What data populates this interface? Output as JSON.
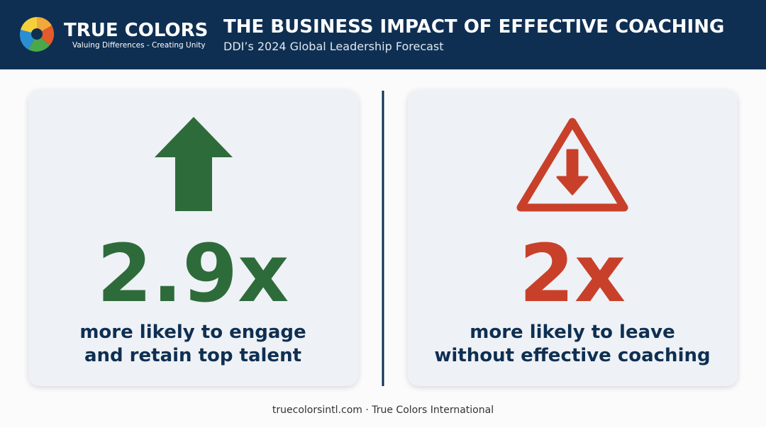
{
  "header": {
    "brand": "TRUE COLORS",
    "tagline": "Valuing Differences - Creating Unity",
    "title": "THE BUSINESS IMPACT OF EFFECTIVE COACHING",
    "subtitle": "DDI’s 2024 Global Leadership Forecast"
  },
  "cards": [
    {
      "value": "2.9x",
      "lines": [
        "more likely to engage",
        "and retain top talent"
      ]
    },
    {
      "value": "2x",
      "lines": [
        "more likely to leave",
        "without effective coaching"
      ]
    }
  ],
  "footer": "truecolorsintl.com · True Colors International"
}
